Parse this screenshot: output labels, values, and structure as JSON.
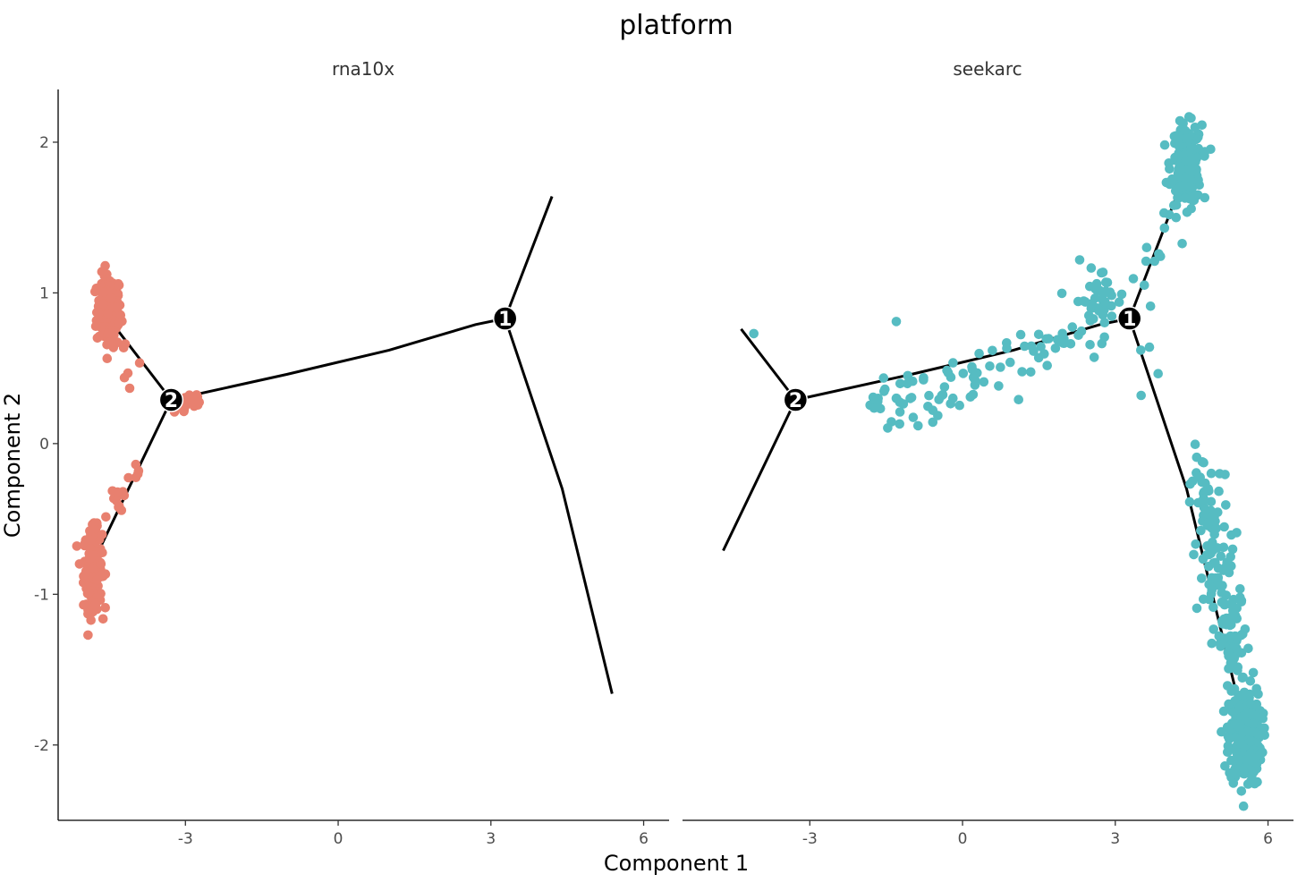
{
  "chart_data": {
    "type": "scatter",
    "title": "platform",
    "xlabel": "Component 1",
    "ylabel": "Component 2",
    "xlim": [
      -5.5,
      6.5
    ],
    "ylim": [
      -2.5,
      2.35
    ],
    "x_ticks": [
      -3,
      0,
      3,
      6
    ],
    "y_ticks": [
      -2,
      -1,
      0,
      1,
      2
    ],
    "grid": false,
    "legend": "none",
    "facets": [
      {
        "name": "rna10x",
        "color": "#E8806F",
        "clusters": [
          {
            "cx": -4.5,
            "cy": 0.88,
            "sx": 0.12,
            "sy": 0.12,
            "n": 160
          },
          {
            "cx": -4.82,
            "cy": -0.83,
            "sx": 0.09,
            "sy": 0.13,
            "n": 170
          },
          {
            "cx": -2.95,
            "cy": 0.27,
            "sx": 0.18,
            "sy": 0.05,
            "n": 22
          }
        ],
        "segments": [
          {
            "x0": -4.35,
            "y0": 0.72,
            "x1": -4.05,
            "y1": 0.52,
            "n": 8
          },
          {
            "x0": -4.55,
            "y0": -0.5,
            "x1": -3.95,
            "y1": -0.15,
            "n": 16
          }
        ]
      },
      {
        "name": "seekarc",
        "color": "#56BCC2",
        "clusters": [
          {
            "cx": 4.4,
            "cy": 1.85,
            "sx": 0.15,
            "sy": 0.13,
            "n": 200
          },
          {
            "cx": 5.55,
            "cy": -1.95,
            "sx": 0.16,
            "sy": 0.16,
            "n": 260
          },
          {
            "cx": 5.3,
            "cy": -1.35,
            "sx": 0.18,
            "sy": 0.18,
            "n": 60
          },
          {
            "cx": 5.05,
            "cy": -0.9,
            "sx": 0.2,
            "sy": 0.15,
            "n": 40
          },
          {
            "cx": 4.85,
            "cy": -0.45,
            "sx": 0.2,
            "sy": 0.15,
            "n": 35
          },
          {
            "cx": 2.7,
            "cy": 0.95,
            "sx": 0.25,
            "sy": 0.12,
            "n": 40
          }
        ],
        "segments": [
          {
            "x0": -1.8,
            "y0": 0.2,
            "x1": 2.7,
            "y1": 0.75,
            "n": 90
          },
          {
            "x0": 3.4,
            "y0": 0.95,
            "x1": 4.1,
            "y1": 1.55,
            "n": 10
          },
          {
            "x0": 4.6,
            "y0": -0.05,
            "x1": 4.95,
            "y1": -0.75,
            "n": 20
          },
          {
            "x0": 3.6,
            "y0": 0.55,
            "x1": 3.8,
            "y1": 0.35,
            "n": 3
          }
        ],
        "points": [
          [
            -4.1,
            0.73
          ],
          [
            -1.3,
            0.81
          ],
          [
            3.5,
            0.62
          ]
        ]
      }
    ],
    "trajectory": {
      "nodes": [
        {
          "label": "1",
          "x": 3.28,
          "y": 0.83
        },
        {
          "label": "2",
          "x": -3.28,
          "y": 0.29
        }
      ],
      "branches": [
        [
          [
            -3.28,
            0.29
          ],
          [
            -1.0,
            0.46
          ],
          [
            1.0,
            0.62
          ],
          [
            2.7,
            0.79
          ],
          [
            3.28,
            0.83
          ]
        ],
        [
          [
            3.28,
            0.83
          ],
          [
            4.2,
            1.64
          ]
        ],
        [
          [
            3.28,
            0.83
          ],
          [
            4.4,
            -0.3
          ],
          [
            5.38,
            -1.66
          ]
        ],
        [
          [
            -3.28,
            0.29
          ],
          [
            -4.35,
            0.76
          ]
        ],
        [
          [
            -3.28,
            0.29
          ],
          [
            -4.7,
            -0.71
          ]
        ]
      ]
    }
  }
}
